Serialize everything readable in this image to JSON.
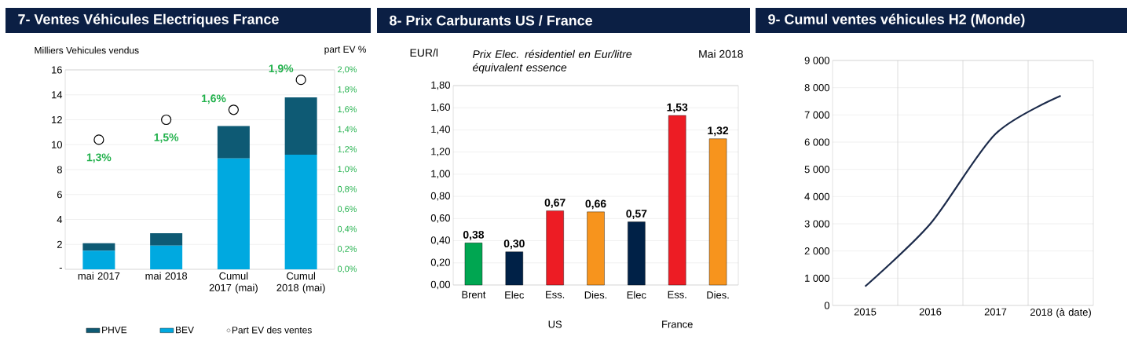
{
  "chart_data": [
    {
      "type": "bar",
      "title": "7- Ventes Véhicules Electriques France",
      "ylabel": "Milliers Vehicules vendus",
      "y2label": "part EV %",
      "categories": [
        "mai 2017",
        "mai 2018",
        "Cumul 2017 (mai)",
        "Cumul 2018 (mai)"
      ],
      "stacked": true,
      "series": [
        {
          "name": "BEV",
          "color": "#00a9e0",
          "values": [
            1.5,
            1.9,
            8.9,
            9.2
          ]
        },
        {
          "name": "PHVE",
          "color": "#0e5a74",
          "values": [
            0.6,
            1.0,
            2.6,
            4.6
          ]
        },
        {
          "name": "Part EV des ventes",
          "type": "scatter",
          "axis": "y2",
          "marker": "circle",
          "color": "#000000",
          "values": [
            1.3,
            1.5,
            1.6,
            1.9
          ],
          "value_labels": [
            "1,3%",
            "1,5%",
            "1,6%",
            "1,9%"
          ]
        }
      ],
      "ylim": [
        0,
        16
      ],
      "yticks": [
        {
          "value": 0,
          "label": "-"
        },
        2,
        4,
        6,
        8,
        10,
        12,
        14,
        16
      ],
      "y2lim": [
        0,
        2
      ],
      "y2ticks": [
        {
          "value": 0,
          "label": "0,0%"
        },
        {
          "value": 0.2,
          "label": "0,2%"
        },
        {
          "value": 0.4,
          "label": "0,4%"
        },
        {
          "value": 0.6,
          "label": "0,6%"
        },
        {
          "value": 0.8,
          "label": "0,8%"
        },
        {
          "value": 1.0,
          "label": "1,0%"
        },
        {
          "value": 1.2,
          "label": "1,2%"
        },
        {
          "value": 1.4,
          "label": "1,4%"
        },
        {
          "value": 1.6,
          "label": "1,6%"
        },
        {
          "value": 1.8,
          "label": "1,8%"
        },
        {
          "value": 2.0,
          "label": "2,0%"
        }
      ],
      "grid": "y",
      "legend": "bottom"
    },
    {
      "type": "bar",
      "title": "8- Prix Carburants US / France",
      "ylabel": "EUR/l",
      "categories": [
        "Brent",
        "Elec",
        "Ess.",
        "Dies.",
        "Elec",
        "Ess.",
        "Dies."
      ],
      "values": [
        0.38,
        0.3,
        0.67,
        0.66,
        0.57,
        1.53,
        1.32
      ],
      "colors": [
        "#00a651",
        "#002147",
        "#ed1c24",
        "#f7941d",
        "#002147",
        "#ed1c24",
        "#f7941d"
      ],
      "value_labels": [
        "0,38",
        "0,30",
        "0,67",
        "0,66",
        "0,57",
        "1,53",
        "1,32"
      ],
      "ylim": [
        0,
        1.8
      ],
      "yticks": [
        {
          "value": 0,
          "label": "0,00"
        },
        {
          "value": 0.2,
          "label": "0,20"
        },
        {
          "value": 0.4,
          "label": "0,40"
        },
        {
          "value": 0.6,
          "label": "0,60"
        },
        {
          "value": 0.8,
          "label": "0,80"
        },
        {
          "value": 1.0,
          "label": "1,00"
        },
        {
          "value": 1.2,
          "label": "1,20"
        },
        {
          "value": 1.4,
          "label": "1,40"
        },
        {
          "value": 1.6,
          "label": "1,60"
        },
        {
          "value": 1.8,
          "label": "1,80"
        }
      ],
      "grid": "y",
      "annotations": [
        "Prix Elec. résidentiel en Eur/litre équivalent essence",
        "Mai 2018",
        "US",
        "France"
      ]
    },
    {
      "type": "line",
      "title": "9- Cumul ventes véhicules H2 (Monde)",
      "categories": [
        "2015",
        "2016",
        "2017",
        "2018 (à date)"
      ],
      "values": [
        700,
        3000,
        6300,
        7700
      ],
      "color": "#1b2a4a",
      "ylim": [
        0,
        9000
      ],
      "yticks": [
        0,
        {
          "value": 1000,
          "label": "1 000"
        },
        {
          "value": 2000,
          "label": "2 000"
        },
        {
          "value": 3000,
          "label": "3 000"
        },
        {
          "value": 4000,
          "label": "4 000"
        },
        {
          "value": 5000,
          "label": "5 000"
        },
        {
          "value": 6000,
          "label": "6 000"
        },
        {
          "value": 7000,
          "label": "7 000"
        },
        {
          "value": 8000,
          "label": "8 000"
        },
        {
          "value": 9000,
          "label": "9 000"
        }
      ],
      "grid": true
    }
  ]
}
